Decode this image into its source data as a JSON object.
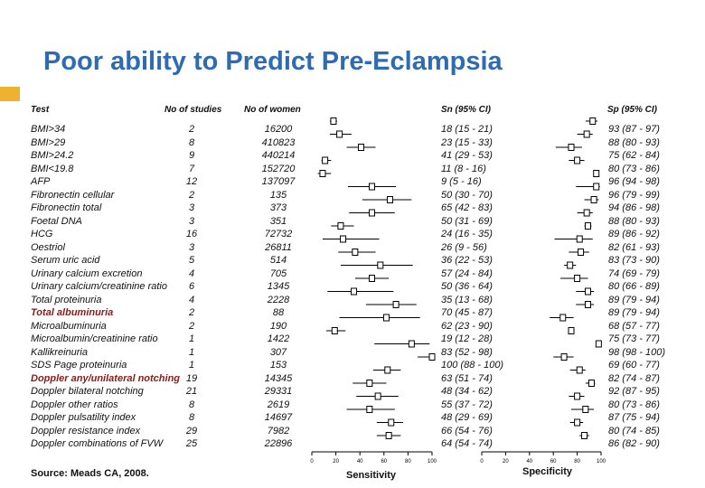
{
  "title": "Poor ability to Predict Pre-Eclampsia",
  "headers": {
    "test": "Test",
    "no_studies": "No of studies",
    "no_women": "No of women",
    "sn": "Sn (95% CI)",
    "sp": "Sp (95% CI)"
  },
  "rows": [
    {
      "test": "BMI>34",
      "studies": "2",
      "women": "16200",
      "sn_text": "18 (15 - 21)",
      "sp_text": "93 (87 - 97)",
      "bold": false
    },
    {
      "test": "BMI>29",
      "studies": "8",
      "women": "410823",
      "sn_text": "23 (15 - 33)",
      "sp_text": "88 (80 - 93)",
      "bold": false
    },
    {
      "test": "BMI>24.2",
      "studies": "9",
      "women": "440214",
      "sn_text": "41 (29 - 53)",
      "sp_text": "75 (62 - 84)",
      "bold": false
    },
    {
      "test": "BMI<19.8",
      "studies": "7",
      "women": "152720",
      "sn_text": "11 (8 - 16)",
      "sp_text": "80 (73 - 86)",
      "bold": false
    },
    {
      "test": "AFP",
      "studies": "12",
      "women": "137097",
      "sn_text": "9 (5 - 16)",
      "sp_text": "96 (94 - 98)",
      "bold": false
    },
    {
      "test": "Fibronectin cellular",
      "studies": "2",
      "women": "135",
      "sn_text": "50 (30 - 70)",
      "sp_text": "96 (79 - 99)",
      "bold": false
    },
    {
      "test": "Fibronectin total",
      "studies": "3",
      "women": "373",
      "sn_text": "65 (42 - 83)",
      "sp_text": "94 (86 - 98)",
      "bold": false
    },
    {
      "test": "Foetal DNA",
      "studies": "3",
      "women": "351",
      "sn_text": "50 (31 - 69)",
      "sp_text": "88 (80 - 93)",
      "bold": false
    },
    {
      "test": "HCG",
      "studies": "16",
      "women": "72732",
      "sn_text": "24 (16 - 35)",
      "sp_text": "89 (86 - 92)",
      "bold": false
    },
    {
      "test": "Oestriol",
      "studies": "3",
      "women": "26811",
      "sn_text": "26 (9 - 56)",
      "sp_text": "82 (61 - 93)",
      "bold": false
    },
    {
      "test": "Serum uric acid",
      "studies": "5",
      "women": "514",
      "sn_text": "36 (22 - 53)",
      "sp_text": "83 (73 - 90)",
      "bold": false
    },
    {
      "test": "Urinary calcium excretion",
      "studies": "4",
      "women": "705",
      "sn_text": "57 (24 - 84)",
      "sp_text": "74 (69 - 79)",
      "bold": false
    },
    {
      "test": "Urinary calcium/creatinine ratio",
      "studies": "6",
      "women": "1345",
      "sn_text": "50 (36 - 64)",
      "sp_text": "80 (66 - 89)",
      "bold": false
    },
    {
      "test": "Total proteinuria",
      "studies": "4",
      "women": "2228",
      "sn_text": "35 (13 - 68)",
      "sp_text": "89 (79 - 94)",
      "bold": false
    },
    {
      "test": "Total albuminuria",
      "studies": "2",
      "women": "88",
      "sn_text": "70 (45 - 87)",
      "sp_text": "89 (79 - 94)",
      "bold": true
    },
    {
      "test": "Microalbuminuria",
      "studies": "2",
      "women": "190",
      "sn_text": "62 (23 - 90)",
      "sp_text": "68 (57 - 77)",
      "bold": false
    },
    {
      "test": "Microalbumin/creatinine ratio",
      "studies": "1",
      "women": "1422",
      "sn_text": "19 (12 - 28)",
      "sp_text": "75 (73 - 77)",
      "bold": false
    },
    {
      "test": "Kallikreinuria",
      "studies": "1",
      "women": "307",
      "sn_text": "83 (52 - 98)",
      "sp_text": "98 (98 - 100)",
      "bold": false
    },
    {
      "test": "SDS Page proteinuria",
      "studies": "1",
      "women": "153",
      "sn_text": "100 (88 - 100)",
      "sp_text": "69 (60 - 77)",
      "bold": false
    },
    {
      "test": "Doppler any/unilateral notching",
      "studies": "19",
      "women": "14345",
      "sn_text": "63 (51 - 74)",
      "sp_text": "82 (74 - 87)",
      "bold": true
    },
    {
      "test": "Doppler bilateral notching",
      "studies": "21",
      "women": "29331",
      "sn_text": "48 (34 - 62)",
      "sp_text": "92 (87 - 95)",
      "bold": false
    },
    {
      "test": "Doppler other ratios",
      "studies": "8",
      "women": "2619",
      "sn_text": "55 (37 - 72)",
      "sp_text": "80 (73 - 86)",
      "bold": false
    },
    {
      "test": "Doppler pulsatility index",
      "studies": "8",
      "women": "14697",
      "sn_text": "48 (29 - 69)",
      "sp_text": "87 (75 - 94)",
      "bold": false
    },
    {
      "test": "Doppler resistance index",
      "studies": "29",
      "women": "7982",
      "sn_text": "66 (54 - 76)",
      "sp_text": "80 (74 - 85)",
      "bold": false
    },
    {
      "test": "Doppler combinations of FVW",
      "studies": "25",
      "women": "22896",
      "sn_text": "64 (54 - 74)",
      "sp_text": "86 (82 - 90)",
      "bold": false
    }
  ],
  "chart_data": {
    "type": "forest",
    "title": "Poor ability to Predict Pre-Eclampsia",
    "panels": [
      {
        "name": "Sensitivity",
        "xlabel": "Sensitivity",
        "xlim": [
          0,
          100
        ],
        "ticks": [
          "0",
          "20",
          "40",
          "60",
          "80",
          "100"
        ],
        "points": [
          [
            18,
            15,
            21
          ],
          [
            23,
            15,
            33
          ],
          [
            41,
            29,
            53
          ],
          [
            11,
            8,
            16
          ],
          [
            9,
            5,
            16
          ],
          [
            50,
            30,
            70
          ],
          [
            65,
            42,
            83
          ],
          [
            50,
            31,
            69
          ],
          [
            24,
            16,
            35
          ],
          [
            26,
            9,
            56
          ],
          [
            36,
            22,
            53
          ],
          [
            57,
            24,
            84
          ],
          [
            50,
            36,
            64
          ],
          [
            35,
            13,
            68
          ],
          [
            70,
            45,
            87
          ],
          [
            62,
            23,
            90
          ],
          [
            19,
            12,
            28
          ],
          [
            83,
            52,
            98
          ],
          [
            100,
            88,
            100
          ],
          [
            63,
            51,
            74
          ],
          [
            48,
            34,
            62
          ],
          [
            55,
            37,
            72
          ],
          [
            48,
            29,
            69
          ],
          [
            66,
            54,
            76
          ],
          [
            64,
            54,
            74
          ]
        ]
      },
      {
        "name": "Specificity",
        "xlabel": "Specificity",
        "xlim": [
          0,
          100
        ],
        "ticks": [
          "0",
          "20",
          "40",
          "60",
          "80",
          "100"
        ],
        "points": [
          [
            93,
            87,
            97
          ],
          [
            88,
            80,
            93
          ],
          [
            75,
            62,
            84
          ],
          [
            80,
            73,
            86
          ],
          [
            96,
            94,
            98
          ],
          [
            96,
            79,
            99
          ],
          [
            94,
            86,
            98
          ],
          [
            88,
            80,
            93
          ],
          [
            89,
            86,
            92
          ],
          [
            82,
            61,
            93
          ],
          [
            83,
            73,
            90
          ],
          [
            74,
            69,
            79
          ],
          [
            80,
            66,
            89
          ],
          [
            89,
            79,
            94
          ],
          [
            89,
            79,
            94
          ],
          [
            68,
            57,
            77
          ],
          [
            75,
            73,
            77
          ],
          [
            98,
            98,
            100
          ],
          [
            69,
            60,
            77
          ],
          [
            82,
            74,
            87
          ],
          [
            92,
            87,
            95
          ],
          [
            80,
            73,
            86
          ],
          [
            87,
            75,
            94
          ],
          [
            80,
            74,
            85
          ],
          [
            86,
            82,
            90
          ]
        ]
      }
    ]
  },
  "source": "Source: Meads CA, 2008."
}
